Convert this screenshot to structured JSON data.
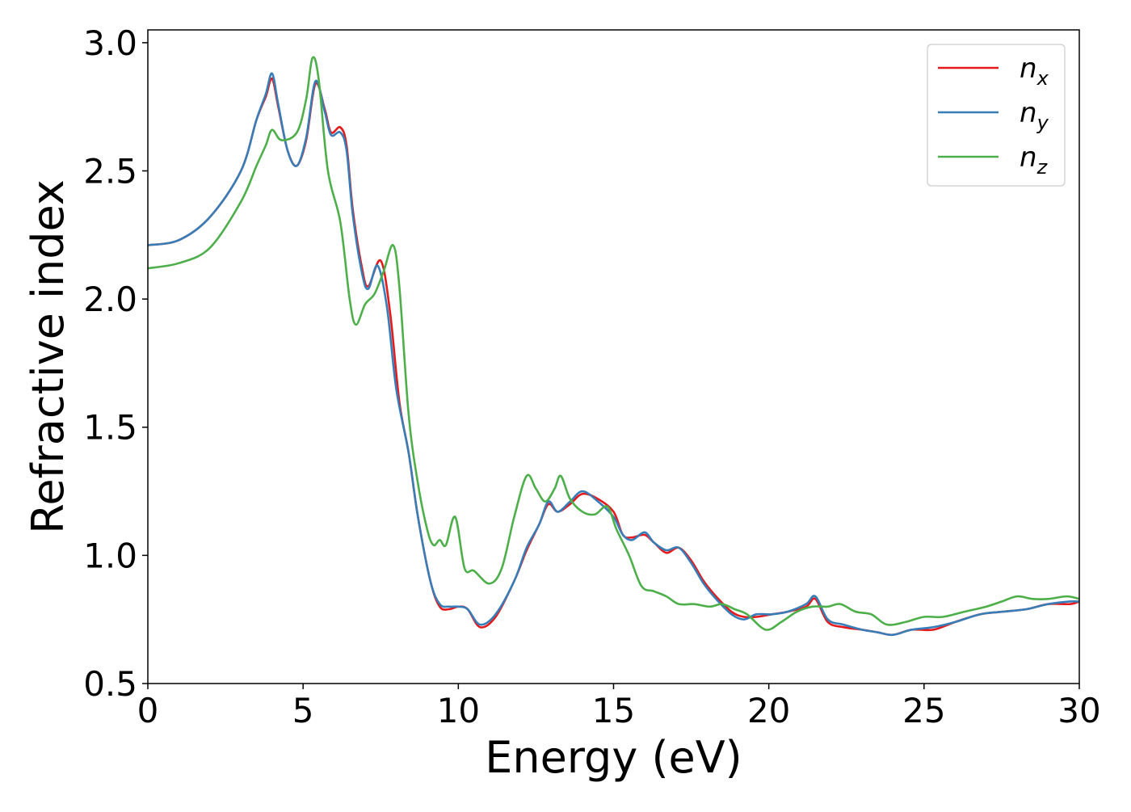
{
  "chart_data": {
    "type": "line",
    "xlabel": "Energy (eV)",
    "ylabel": "Refractive index",
    "xlim": [
      0,
      30
    ],
    "ylim": [
      0.5,
      3.05
    ],
    "x_ticks": [
      "0",
      "5",
      "10",
      "15",
      "20",
      "25",
      "30"
    ],
    "y_ticks": [
      "0.5",
      "1.0",
      "1.5",
      "2.0",
      "2.5",
      "3.0"
    ],
    "legend_position": "top-right",
    "grid": false,
    "series": [
      {
        "name": "n",
        "subscript": "x",
        "color": "#e41a1c",
        "points": [
          [
            0,
            2.21
          ],
          [
            1,
            2.23
          ],
          [
            2,
            2.32
          ],
          [
            3,
            2.5
          ],
          [
            3.5,
            2.7
          ],
          [
            3.8,
            2.79
          ],
          [
            4.0,
            2.86
          ],
          [
            4.2,
            2.75
          ],
          [
            4.5,
            2.58
          ],
          [
            4.8,
            2.52
          ],
          [
            5.1,
            2.62
          ],
          [
            5.4,
            2.84
          ],
          [
            5.7,
            2.74
          ],
          [
            5.9,
            2.65
          ],
          [
            6.2,
            2.67
          ],
          [
            6.4,
            2.6
          ],
          [
            6.6,
            2.35
          ],
          [
            6.9,
            2.12
          ],
          [
            7.1,
            2.05
          ],
          [
            7.5,
            2.15
          ],
          [
            7.8,
            1.95
          ],
          [
            8.1,
            1.6
          ],
          [
            8.4,
            1.4
          ],
          [
            8.7,
            1.15
          ],
          [
            9.1,
            0.9
          ],
          [
            9.4,
            0.8
          ],
          [
            9.7,
            0.79
          ],
          [
            10.0,
            0.8
          ],
          [
            10.3,
            0.79
          ],
          [
            10.7,
            0.72
          ],
          [
            11.2,
            0.76
          ],
          [
            11.8,
            0.9
          ],
          [
            12.2,
            1.02
          ],
          [
            12.6,
            1.12
          ],
          [
            12.9,
            1.2
          ],
          [
            13.2,
            1.17
          ],
          [
            13.6,
            1.2
          ],
          [
            14.0,
            1.24
          ],
          [
            14.5,
            1.22
          ],
          [
            15.0,
            1.17
          ],
          [
            15.3,
            1.08
          ],
          [
            15.6,
            1.07
          ],
          [
            16.0,
            1.08
          ],
          [
            16.3,
            1.05
          ],
          [
            16.7,
            1.01
          ],
          [
            17.1,
            1.03
          ],
          [
            17.5,
            0.98
          ],
          [
            17.9,
            0.9
          ],
          [
            18.3,
            0.84
          ],
          [
            18.8,
            0.78
          ],
          [
            19.2,
            0.76
          ],
          [
            19.6,
            0.76
          ],
          [
            20.1,
            0.77
          ],
          [
            20.6,
            0.78
          ],
          [
            21.2,
            0.8
          ],
          [
            21.5,
            0.83
          ],
          [
            21.9,
            0.74
          ],
          [
            22.4,
            0.72
          ],
          [
            23.0,
            0.71
          ],
          [
            23.5,
            0.7
          ],
          [
            24.0,
            0.69
          ],
          [
            24.6,
            0.71
          ],
          [
            25.3,
            0.71
          ],
          [
            26.0,
            0.74
          ],
          [
            26.8,
            0.77
          ],
          [
            27.5,
            0.78
          ],
          [
            28.3,
            0.79
          ],
          [
            29.0,
            0.81
          ],
          [
            29.7,
            0.81
          ],
          [
            30,
            0.82
          ]
        ]
      },
      {
        "name": "n",
        "subscript": "y",
        "color": "#377eb8",
        "points": [
          [
            0,
            2.21
          ],
          [
            1,
            2.23
          ],
          [
            2,
            2.32
          ],
          [
            3,
            2.5
          ],
          [
            3.5,
            2.7
          ],
          [
            3.8,
            2.8
          ],
          [
            4.0,
            2.88
          ],
          [
            4.2,
            2.76
          ],
          [
            4.5,
            2.58
          ],
          [
            4.8,
            2.52
          ],
          [
            5.1,
            2.63
          ],
          [
            5.4,
            2.85
          ],
          [
            5.7,
            2.73
          ],
          [
            5.9,
            2.64
          ],
          [
            6.2,
            2.65
          ],
          [
            6.4,
            2.58
          ],
          [
            6.6,
            2.33
          ],
          [
            6.9,
            2.1
          ],
          [
            7.1,
            2.04
          ],
          [
            7.4,
            2.13
          ],
          [
            7.7,
            1.97
          ],
          [
            8.0,
            1.65
          ],
          [
            8.4,
            1.4
          ],
          [
            8.7,
            1.15
          ],
          [
            9.1,
            0.9
          ],
          [
            9.4,
            0.81
          ],
          [
            9.7,
            0.8
          ],
          [
            10.0,
            0.8
          ],
          [
            10.3,
            0.79
          ],
          [
            10.7,
            0.73
          ],
          [
            11.2,
            0.77
          ],
          [
            11.8,
            0.9
          ],
          [
            12.2,
            1.03
          ],
          [
            12.6,
            1.12
          ],
          [
            12.9,
            1.21
          ],
          [
            13.2,
            1.17
          ],
          [
            13.6,
            1.21
          ],
          [
            14.0,
            1.25
          ],
          [
            14.5,
            1.21
          ],
          [
            15.0,
            1.15
          ],
          [
            15.3,
            1.08
          ],
          [
            15.6,
            1.06
          ],
          [
            16.0,
            1.09
          ],
          [
            16.3,
            1.05
          ],
          [
            16.7,
            1.02
          ],
          [
            17.1,
            1.03
          ],
          [
            17.5,
            0.97
          ],
          [
            17.9,
            0.89
          ],
          [
            18.3,
            0.83
          ],
          [
            18.8,
            0.77
          ],
          [
            19.2,
            0.75
          ],
          [
            19.6,
            0.77
          ],
          [
            20.1,
            0.77
          ],
          [
            20.6,
            0.78
          ],
          [
            21.2,
            0.81
          ],
          [
            21.5,
            0.84
          ],
          [
            21.9,
            0.75
          ],
          [
            22.4,
            0.73
          ],
          [
            23.0,
            0.71
          ],
          [
            23.5,
            0.7
          ],
          [
            24.0,
            0.69
          ],
          [
            24.6,
            0.71
          ],
          [
            25.3,
            0.72
          ],
          [
            26.0,
            0.74
          ],
          [
            26.8,
            0.77
          ],
          [
            27.5,
            0.78
          ],
          [
            28.3,
            0.79
          ],
          [
            29.0,
            0.81
          ],
          [
            29.7,
            0.82
          ],
          [
            30,
            0.82
          ]
        ]
      },
      {
        "name": "n",
        "subscript": "z",
        "color": "#4daf4a",
        "points": [
          [
            0,
            2.12
          ],
          [
            1,
            2.14
          ],
          [
            2,
            2.2
          ],
          [
            3,
            2.38
          ],
          [
            3.5,
            2.52
          ],
          [
            3.8,
            2.6
          ],
          [
            4.0,
            2.66
          ],
          [
            4.3,
            2.62
          ],
          [
            4.8,
            2.65
          ],
          [
            5.1,
            2.78
          ],
          [
            5.3,
            2.94
          ],
          [
            5.5,
            2.86
          ],
          [
            5.8,
            2.5
          ],
          [
            6.2,
            2.3
          ],
          [
            6.5,
            2.0
          ],
          [
            6.7,
            1.9
          ],
          [
            7.0,
            1.98
          ],
          [
            7.3,
            2.02
          ],
          [
            7.6,
            2.11
          ],
          [
            7.9,
            2.21
          ],
          [
            8.1,
            2.05
          ],
          [
            8.4,
            1.55
          ],
          [
            8.7,
            1.28
          ],
          [
            9.0,
            1.1
          ],
          [
            9.2,
            1.04
          ],
          [
            9.4,
            1.06
          ],
          [
            9.6,
            1.04
          ],
          [
            9.9,
            1.15
          ],
          [
            10.2,
            0.95
          ],
          [
            10.5,
            0.94
          ],
          [
            11.0,
            0.89
          ],
          [
            11.4,
            0.95
          ],
          [
            11.8,
            1.15
          ],
          [
            12.2,
            1.31
          ],
          [
            12.5,
            1.26
          ],
          [
            12.8,
            1.21
          ],
          [
            13.1,
            1.26
          ],
          [
            13.3,
            1.31
          ],
          [
            13.6,
            1.22
          ],
          [
            14.0,
            1.17
          ],
          [
            14.4,
            1.16
          ],
          [
            14.8,
            1.19
          ],
          [
            15.1,
            1.1
          ],
          [
            15.5,
            1.0
          ],
          [
            15.9,
            0.88
          ],
          [
            16.3,
            0.86
          ],
          [
            16.7,
            0.84
          ],
          [
            17.1,
            0.81
          ],
          [
            17.6,
            0.81
          ],
          [
            18.1,
            0.8
          ],
          [
            18.5,
            0.81
          ],
          [
            18.9,
            0.79
          ],
          [
            19.3,
            0.77
          ],
          [
            19.9,
            0.71
          ],
          [
            20.4,
            0.74
          ],
          [
            20.9,
            0.78
          ],
          [
            21.4,
            0.8
          ],
          [
            21.9,
            0.8
          ],
          [
            22.3,
            0.81
          ],
          [
            22.8,
            0.78
          ],
          [
            23.3,
            0.77
          ],
          [
            23.8,
            0.73
          ],
          [
            24.4,
            0.74
          ],
          [
            25.0,
            0.76
          ],
          [
            25.6,
            0.76
          ],
          [
            26.3,
            0.78
          ],
          [
            27.0,
            0.8
          ],
          [
            27.5,
            0.82
          ],
          [
            28.0,
            0.84
          ],
          [
            28.5,
            0.83
          ],
          [
            29.0,
            0.83
          ],
          [
            29.6,
            0.84
          ],
          [
            30,
            0.83
          ]
        ]
      }
    ]
  }
}
